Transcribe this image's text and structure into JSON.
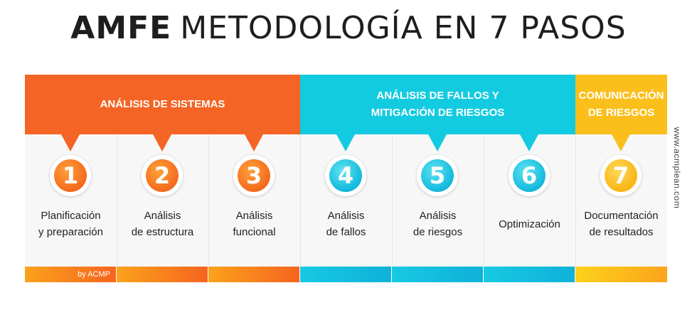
{
  "title": {
    "bold": "AMFE",
    "rest": "METODOLOGÍA EN 7 PASOS"
  },
  "phases": [
    {
      "lines": [
        "ANÁLISIS DE SISTEMAS"
      ],
      "color": "#f46424"
    },
    {
      "lines": [
        "ANÁLISIS DE FALLOS Y",
        "MITIGACIÓN DE RIESGOS"
      ],
      "color": "#13cbe0"
    },
    {
      "lines": [
        "COMUNICACIÓN",
        "DE RIESGOS"
      ],
      "color": "#fbbf1c"
    }
  ],
  "steps": [
    {
      "number": "1",
      "lines": [
        "Planificación",
        "y preparación"
      ]
    },
    {
      "number": "2",
      "lines": [
        "Análisis",
        "de estructura"
      ]
    },
    {
      "number": "3",
      "lines": [
        "Análisis",
        "funcional"
      ]
    },
    {
      "number": "4",
      "lines": [
        "Análisis",
        "de fallos"
      ]
    },
    {
      "number": "5",
      "lines": [
        "Análisis",
        "de riesgos"
      ]
    },
    {
      "number": "6",
      "lines": [
        "Optimización"
      ]
    },
    {
      "number": "7",
      "lines": [
        "Documentación",
        "de resultados"
      ]
    }
  ],
  "credit": "by ACMP",
  "website": "www.acmplean.com"
}
